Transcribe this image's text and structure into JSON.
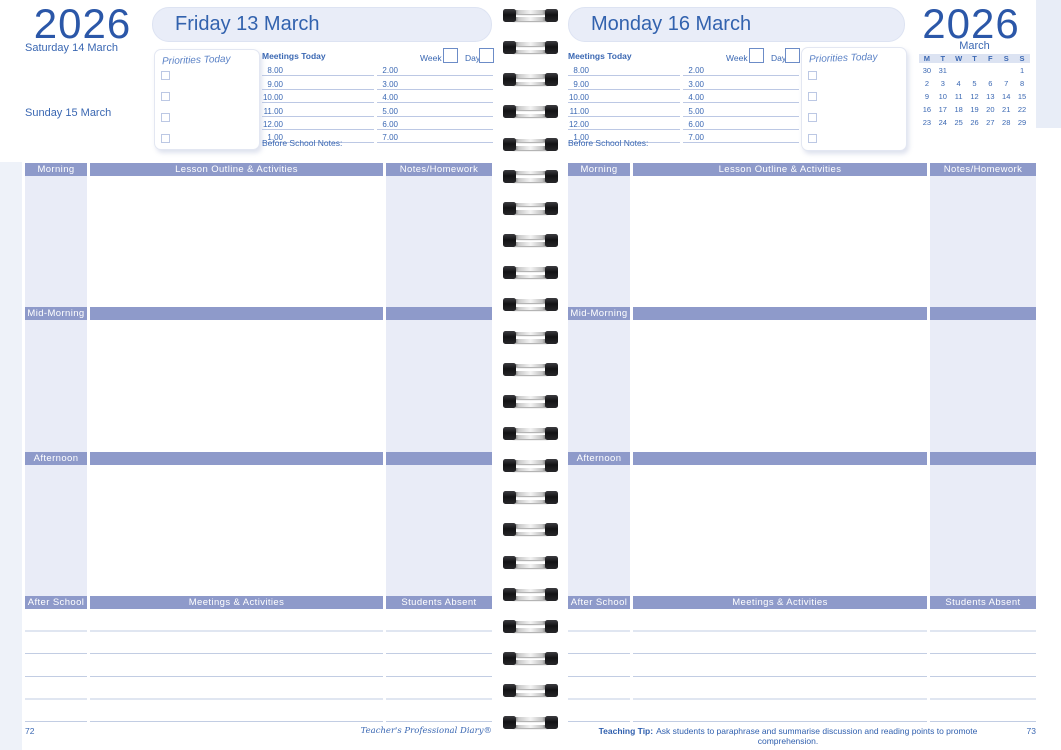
{
  "year": "2026",
  "left_page": {
    "day_title": "Friday 13 March",
    "saturday_label": "Saturday 14 March",
    "sunday_label": "Sunday 15 March",
    "page_number": "72",
    "brand": "Teacher's Professional Diary®"
  },
  "right_page": {
    "day_title": "Monday 16 March",
    "page_number": "73",
    "teaching_tip_label": "Teaching Tip:",
    "teaching_tip_text": "Ask students to paraphrase and summarise discussion and reading points to promote comprehension."
  },
  "planner": {
    "priorities_label": "Priorities Today",
    "meetings_label": "Meetings Today",
    "week_label": "Week",
    "day_label": "Day",
    "before_school_label": "Before School Notes:",
    "times_col1": [
      "8.00",
      "9.00",
      "10.00",
      "11.00",
      "12.00",
      "1.00"
    ],
    "times_col2": [
      "2.00",
      "3.00",
      "4.00",
      "5.00",
      "6.00",
      "7.00"
    ]
  },
  "sections": {
    "morning": "Morning",
    "lesson_header": "Lesson Outline & Activities",
    "notes_header": "Notes/Homework",
    "mid_morning": "Mid-Morning",
    "afternoon": "Afternoon",
    "after_school": "After School",
    "meetings_header": "Meetings & Activities",
    "absent_header": "Students Absent"
  },
  "calendar": {
    "month": "March",
    "day_headers": [
      "M",
      "T",
      "W",
      "T",
      "F",
      "S",
      "S"
    ],
    "rows": [
      [
        "30",
        "31",
        "",
        "",
        "",
        "",
        "1"
      ],
      [
        "2",
        "3",
        "4",
        "5",
        "6",
        "7",
        "8"
      ],
      [
        "9",
        "10",
        "11",
        "12",
        "13",
        "14",
        "15"
      ],
      [
        "16",
        "17",
        "18",
        "19",
        "20",
        "21",
        "22"
      ],
      [
        "23",
        "24",
        "25",
        "26",
        "27",
        "28",
        "29"
      ]
    ]
  },
  "colors": {
    "accent_blue": "#3a67b2",
    "year_blue": "#2b57a8",
    "section_bar": "#8e9aca",
    "cell_lavender": "#e9ecf7",
    "title_box_fill": "#e9edf8"
  }
}
